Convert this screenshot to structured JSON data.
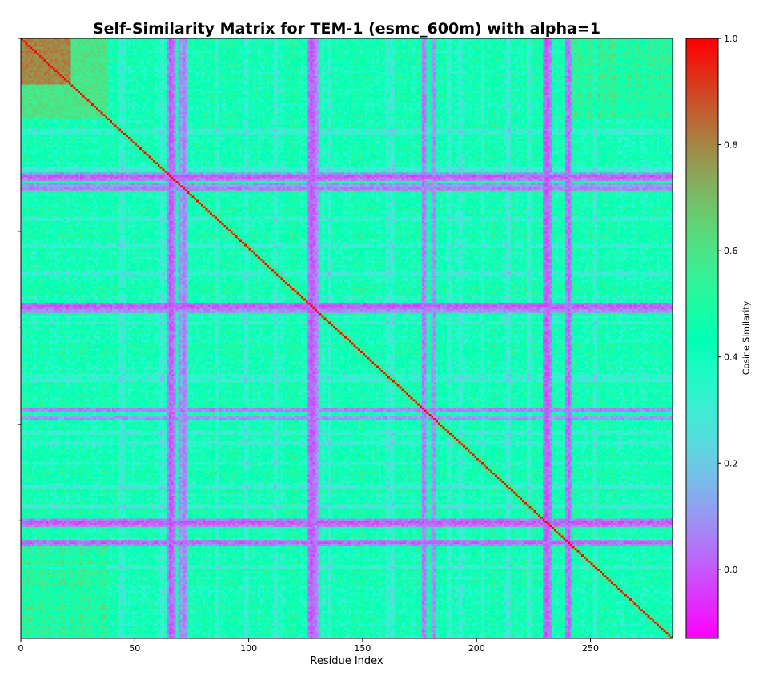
{
  "chart_data": {
    "type": "heatmap",
    "title": "Self-Similarity Matrix for TEM-1 (esmc_600m) with alpha=1",
    "xlabel": "Residue Index",
    "ylabel": "",
    "n_residues": 286,
    "xlim": [
      0,
      286
    ],
    "x_ticks": [
      0,
      50,
      100,
      150,
      200,
      250
    ],
    "x_tick_labels": [
      "0",
      "50",
      "100",
      "150",
      "200",
      "250"
    ],
    "y_ticks": [
      0,
      46,
      92,
      138,
      184,
      230
    ],
    "y_tick_labels": [],
    "colorbar": {
      "label": "Cosine Similarity",
      "vmin": -0.13,
      "vmax": 1.0,
      "ticks": [
        0.0,
        0.2,
        0.4,
        0.6,
        0.8,
        1.0
      ],
      "tick_labels": [
        "0.0",
        "0.2",
        "0.4",
        "0.6",
        "0.8",
        "1.0"
      ],
      "colormap": "rainbow"
    },
    "diagonal_value": 1.0,
    "background_similarity": 0.42,
    "high_similarity_block": {
      "start": 0,
      "end": 22,
      "value": 0.8
    },
    "secondary_block": {
      "start": 0,
      "end": 38,
      "value": 0.6
    },
    "low_similarity_residues": [
      {
        "index": 64,
        "value": 0.08
      },
      {
        "index": 65,
        "value": 0.0
      },
      {
        "index": 66,
        "value": 0.02
      },
      {
        "index": 67,
        "value": 0.08
      },
      {
        "index": 69,
        "value": 0.1
      },
      {
        "index": 70,
        "value": 0.12
      },
      {
        "index": 71,
        "value": 0.06
      },
      {
        "index": 72,
        "value": 0.1
      },
      {
        "index": 126,
        "value": 0.04
      },
      {
        "index": 127,
        "value": 0.0
      },
      {
        "index": 128,
        "value": 0.02
      },
      {
        "index": 129,
        "value": 0.08
      },
      {
        "index": 130,
        "value": 0.12
      },
      {
        "index": 176,
        "value": 0.06
      },
      {
        "index": 177,
        "value": 0.08
      },
      {
        "index": 180,
        "value": 0.12
      },
      {
        "index": 181,
        "value": 0.1
      },
      {
        "index": 229,
        "value": 0.06
      },
      {
        "index": 230,
        "value": 0.0
      },
      {
        "index": 231,
        "value": 0.02
      },
      {
        "index": 232,
        "value": 0.08
      },
      {
        "index": 239,
        "value": 0.06
      },
      {
        "index": 240,
        "value": 0.02
      },
      {
        "index": 241,
        "value": 0.08
      }
    ]
  }
}
